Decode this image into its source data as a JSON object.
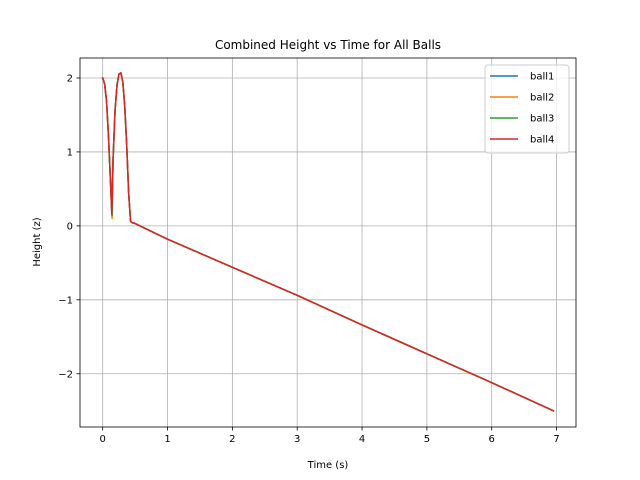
{
  "chart_data": {
    "type": "line",
    "title": "Combined Height vs Time for All Balls",
    "xlabel": "Time (s)",
    "ylabel": "Height (z)",
    "xlim": [
      -0.35,
      7.3
    ],
    "ylim": [
      -2.72,
      2.27
    ],
    "xticks": [
      0,
      1,
      2,
      3,
      4,
      5,
      6,
      7
    ],
    "xtick_labels": [
      "0",
      "1",
      "2",
      "3",
      "4",
      "5",
      "6",
      "7"
    ],
    "yticks": [
      -2,
      -1,
      0,
      1,
      2
    ],
    "ytick_labels": [
      "−2",
      "−1",
      "0",
      "1",
      "2"
    ],
    "grid": true,
    "legend_position": "top-right",
    "colors": {
      "ball1": "#1f77b4",
      "ball2": "#ff7f0e",
      "ball3": "#2ca02c",
      "ball4": "#d62728"
    },
    "series": [
      {
        "name": "ball1",
        "color": "#1f77b4",
        "x": [
          0,
          0.03,
          0.06,
          0.09,
          0.12,
          0.14,
          0.16,
          0.19,
          0.22,
          0.25,
          0.28,
          0.31,
          0.34,
          0.37,
          0.4,
          0.43,
          0.46,
          0.48,
          1,
          2,
          3,
          4,
          5,
          6,
          6.95
        ],
        "y": [
          2.0,
          1.92,
          1.68,
          1.2,
          0.6,
          0.18,
          0.9,
          1.55,
          1.9,
          2.05,
          2.07,
          1.95,
          1.62,
          1.1,
          0.45,
          0.06,
          0.04,
          0.04,
          -0.18,
          -0.56,
          -0.94,
          -1.34,
          -1.73,
          -2.12,
          -2.5
        ]
      },
      {
        "name": "ball2",
        "color": "#ff7f0e",
        "x": [
          0,
          0.03,
          0.06,
          0.09,
          0.12,
          0.145,
          0.16,
          0.19,
          0.22,
          0.25,
          0.28,
          0.31,
          0.34,
          0.37,
          0.4,
          0.43,
          0.46,
          0.48,
          1,
          2,
          3,
          4,
          5,
          6,
          6.95
        ],
        "y": [
          2.0,
          1.92,
          1.68,
          1.2,
          0.6,
          0.1,
          0.9,
          1.55,
          1.9,
          2.05,
          2.07,
          1.95,
          1.62,
          1.1,
          0.45,
          0.06,
          0.04,
          0.04,
          -0.18,
          -0.56,
          -0.94,
          -1.34,
          -1.73,
          -2.12,
          -2.5
        ]
      },
      {
        "name": "ball3",
        "color": "#2ca02c",
        "x": [
          0,
          0.03,
          0.06,
          0.09,
          0.12,
          0.145,
          0.16,
          0.19,
          0.22,
          0.25,
          0.28,
          0.31,
          0.34,
          0.37,
          0.4,
          0.43,
          0.46,
          0.48,
          1,
          2,
          3,
          4,
          5,
          6,
          6.95
        ],
        "y": [
          2.0,
          1.92,
          1.68,
          1.2,
          0.6,
          0.14,
          0.9,
          1.55,
          1.9,
          2.05,
          2.07,
          1.95,
          1.62,
          1.1,
          0.45,
          0.06,
          0.04,
          0.04,
          -0.18,
          -0.56,
          -0.94,
          -1.34,
          -1.73,
          -2.12,
          -2.5
        ]
      },
      {
        "name": "ball4",
        "color": "#d62728",
        "x": [
          0,
          0.03,
          0.06,
          0.09,
          0.12,
          0.14,
          0.16,
          0.19,
          0.22,
          0.25,
          0.28,
          0.31,
          0.34,
          0.37,
          0.4,
          0.43,
          0.46,
          0.48,
          1,
          2,
          3,
          4,
          5,
          6,
          6.95
        ],
        "y": [
          2.0,
          1.92,
          1.68,
          1.2,
          0.6,
          0.16,
          0.9,
          1.55,
          1.9,
          2.05,
          2.07,
          1.95,
          1.62,
          1.1,
          0.45,
          0.06,
          0.04,
          0.04,
          -0.18,
          -0.56,
          -0.94,
          -1.34,
          -1.73,
          -2.12,
          -2.5
        ]
      }
    ]
  }
}
